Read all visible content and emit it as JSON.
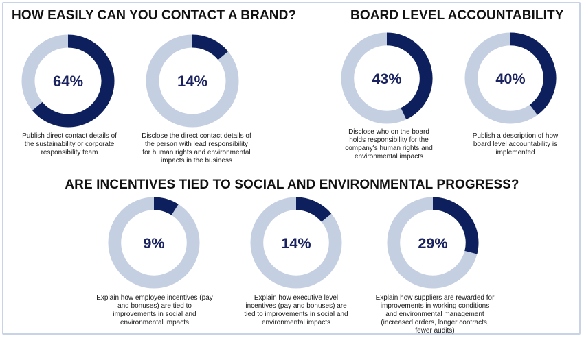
{
  "headings": {
    "contact": "HOW EASILY CAN YOU CONTACT A BRAND?",
    "board": "BOARD LEVEL ACCOUNTABILITY",
    "incentives": "ARE INCENTIVES TIED TO SOCIAL AND ENVIRONMENTAL PROGRESS?"
  },
  "colors": {
    "filled": "#0d1f5c",
    "track": "#c5cfe2",
    "label": "#1a2360"
  },
  "chart_data": [
    {
      "type": "pie",
      "value_percent": 64,
      "label": "64%",
      "caption": "Publish direct contact details of the sustainability or corporate responsibility team"
    },
    {
      "type": "pie",
      "value_percent": 14,
      "label": "14%",
      "caption": "Disclose the direct contact details of the person with lead responsibility for human rights and environmental impacts in the business"
    },
    {
      "type": "pie",
      "value_percent": 43,
      "label": "43%",
      "caption": "Disclose who on the board holds responsibility for the company's human rights and environmental impacts"
    },
    {
      "type": "pie",
      "value_percent": 40,
      "label": "40%",
      "caption": "Publish a description of how board level accountability is implemented"
    },
    {
      "type": "pie",
      "value_percent": 9,
      "label": "9%",
      "caption": "Explain how employee incentives (pay and bonuses) are tied to improvements in social and environmental impacts"
    },
    {
      "type": "pie",
      "value_percent": 14,
      "label": "14%",
      "caption": "Explain how executive level incentives (pay and bonuses) are tied to improvements in social and environmental impacts"
    },
    {
      "type": "pie",
      "value_percent": 29,
      "label": "29%",
      "caption": "Explain how suppliers are rewarded for improvements in working conditions and environmental management (increased orders, longer contracts, fewer audits)"
    }
  ]
}
